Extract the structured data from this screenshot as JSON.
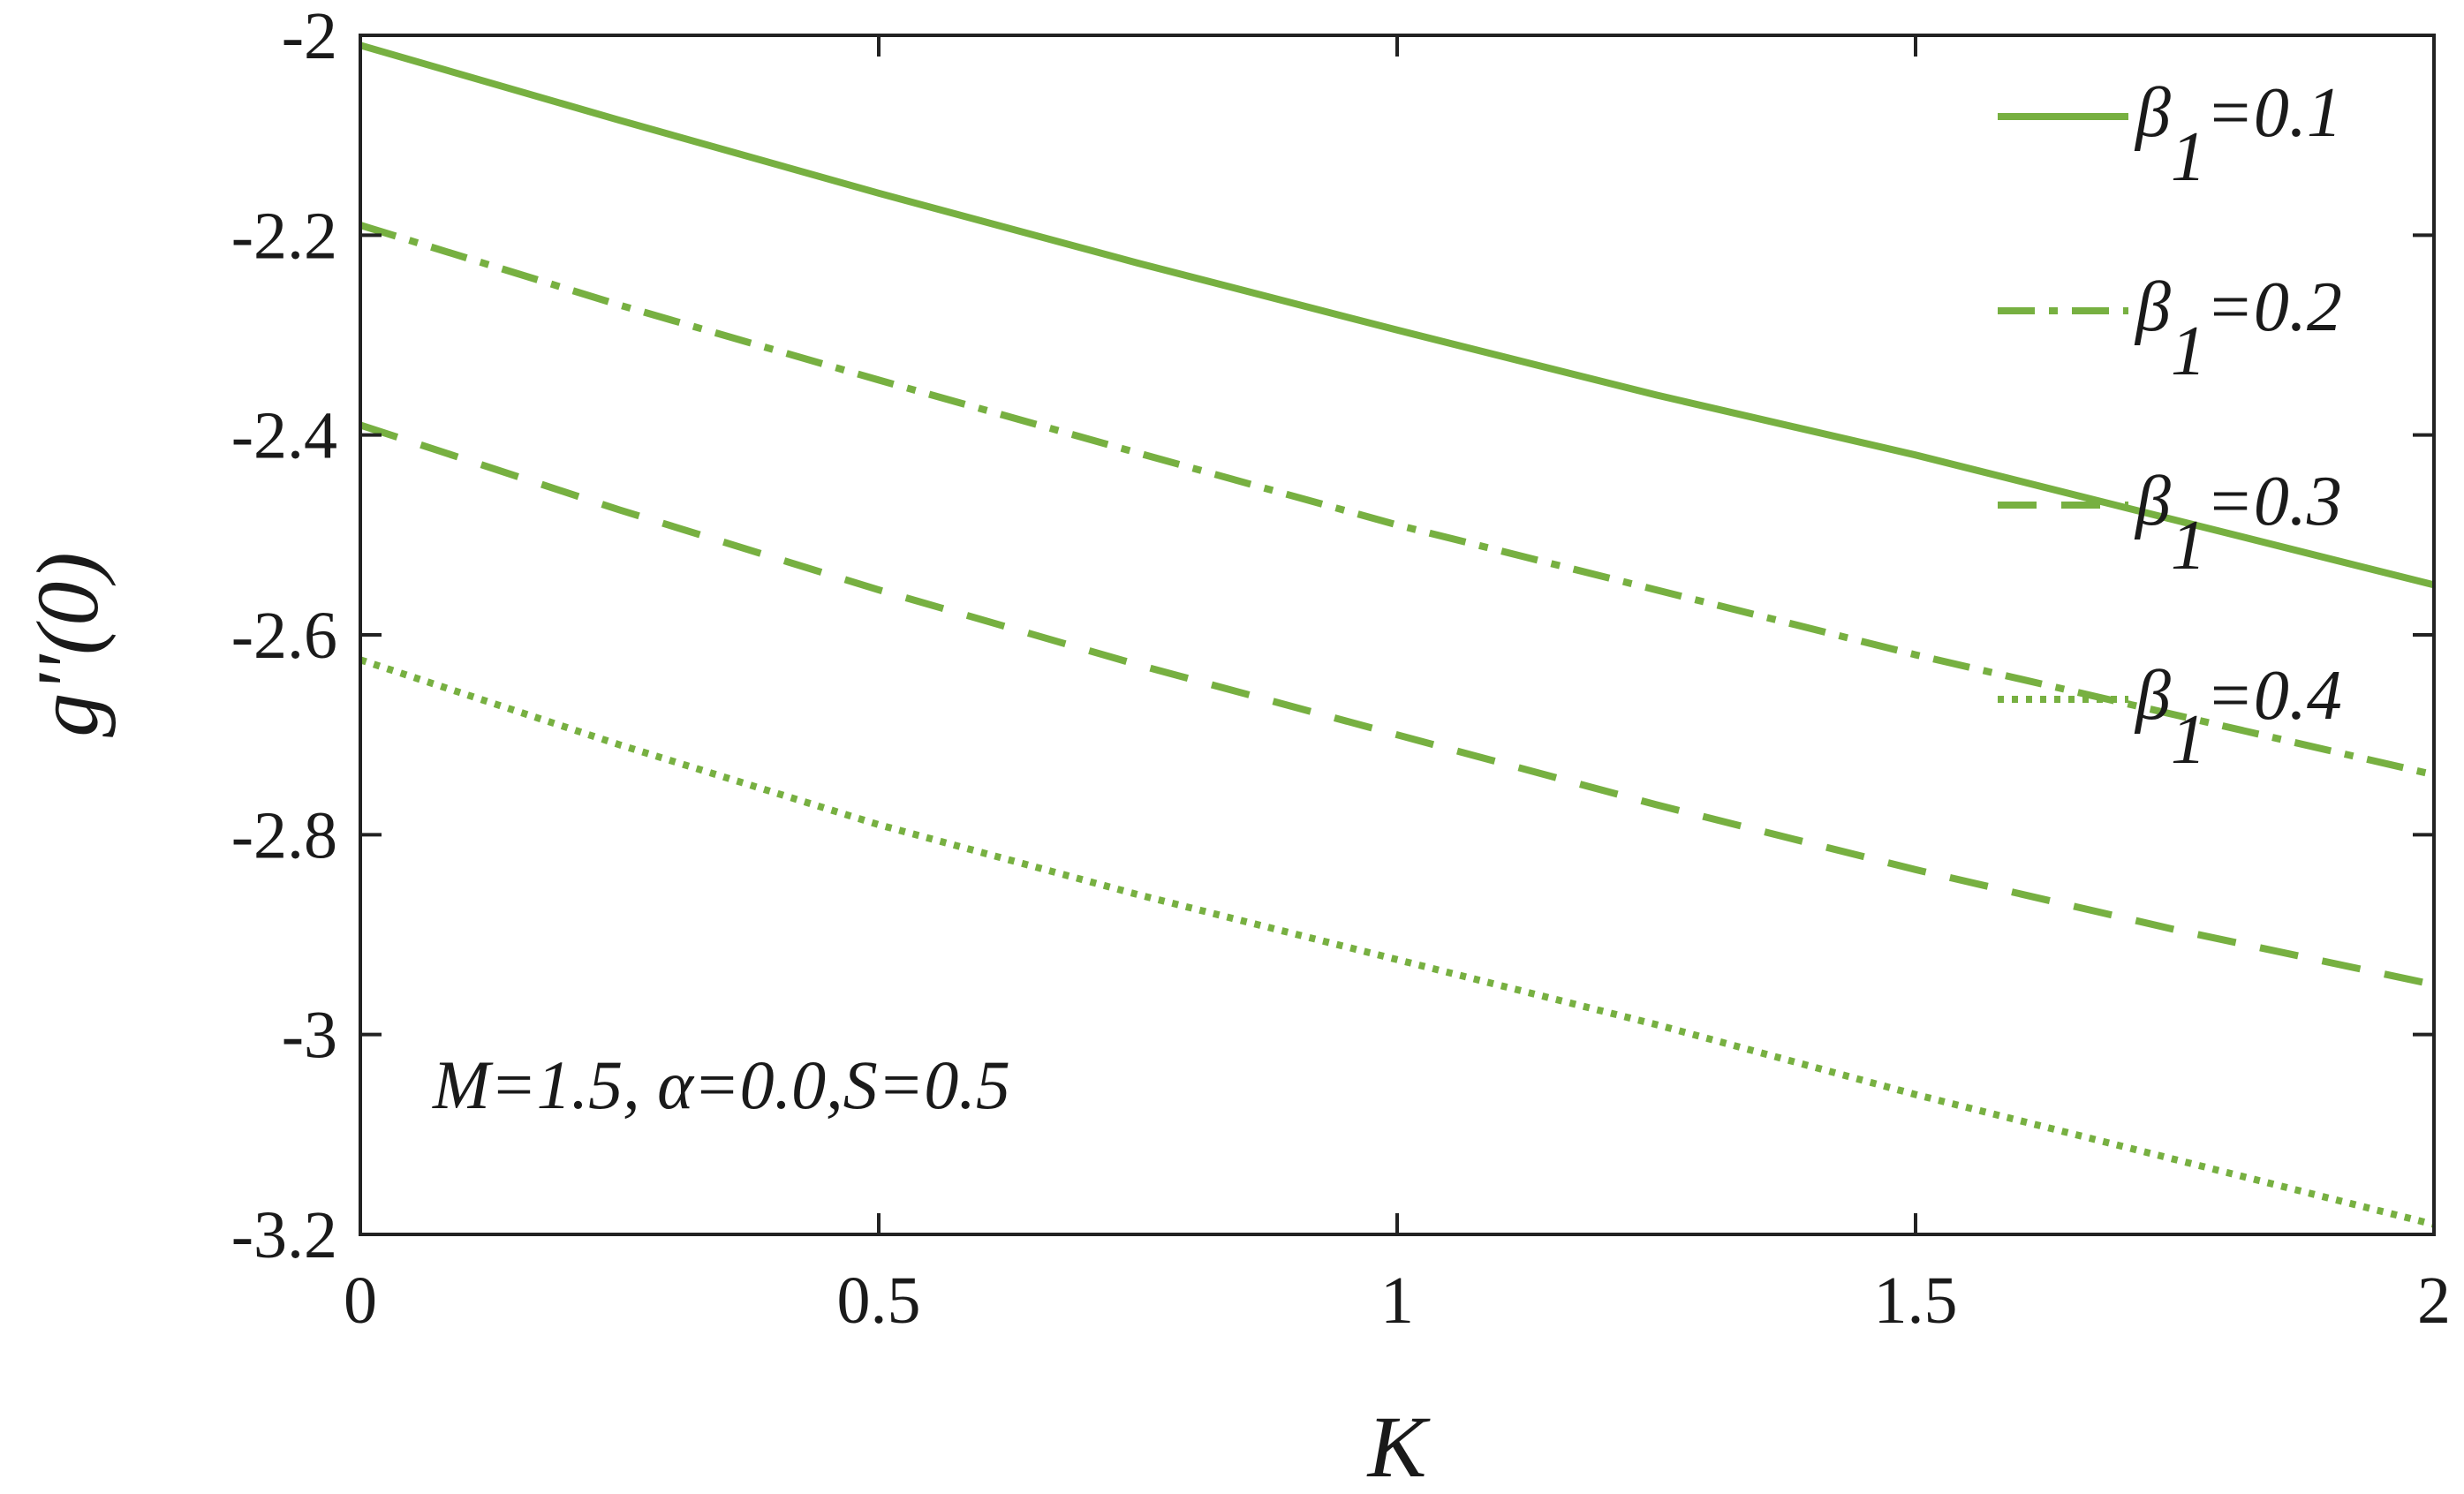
{
  "chart_data": {
    "type": "line",
    "xlabel": "K",
    "ylabel": "g''(0)",
    "xlim": [
      0,
      2
    ],
    "ylim": [
      -3.2,
      -2
    ],
    "xticks": [
      "0",
      "0.5",
      "1",
      "1.5",
      "2"
    ],
    "yticks": [
      "-2",
      "-2.2",
      "-2.4",
      "-2.6",
      "-2.8",
      "-3",
      "-3.2"
    ],
    "grid": false,
    "legend_position": "top-right",
    "annotation": "M=1.5, α=0.0,S=0.5",
    "line_color": "#77b041",
    "x": [
      0,
      0.25,
      0.5,
      0.75,
      1.0,
      1.25,
      1.5,
      1.75,
      2.0
    ],
    "series": [
      {
        "name": "β1=0.1",
        "symbol": "β",
        "subscript": "1",
        "value": "=0.1",
        "style": "solid",
        "values": [
          -2.01,
          -2.085,
          -2.158,
          -2.228,
          -2.295,
          -2.36,
          -2.42,
          -2.485,
          -2.55
        ]
      },
      {
        "name": "β1=0.2",
        "symbol": "β",
        "subscript": "1",
        "value": "=0.2",
        "style": "dashdot",
        "values": [
          -2.19,
          -2.27,
          -2.345,
          -2.418,
          -2.49,
          -2.555,
          -2.62,
          -2.68,
          -2.74
        ]
      },
      {
        "name": "β1=0.3",
        "symbol": "β",
        "subscript": "1",
        "value": "=0.3",
        "style": "dashed",
        "values": [
          -2.39,
          -2.475,
          -2.555,
          -2.63,
          -2.7,
          -2.77,
          -2.835,
          -2.895,
          -2.95
        ]
      },
      {
        "name": "β1=0.4",
        "symbol": "β",
        "subscript": "1",
        "value": "=0.4",
        "style": "dotted",
        "values": [
          -2.625,
          -2.71,
          -2.79,
          -2.86,
          -2.925,
          -2.99,
          -3.06,
          -3.125,
          -3.19
        ]
      }
    ]
  }
}
